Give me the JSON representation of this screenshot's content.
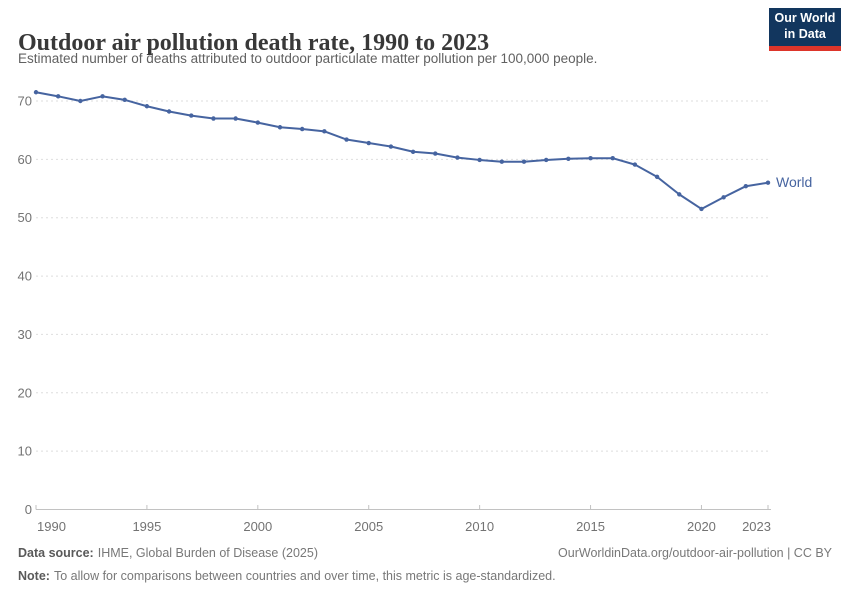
{
  "header": {
    "logo": {
      "line1": "Our World",
      "line2": "in Data"
    }
  },
  "chart_data": {
    "type": "line",
    "title": "Outdoor air pollution death rate, 1990 to 2023",
    "subtitle": "Estimated number of deaths attributed to outdoor particulate matter pollution per 100,000 people.",
    "xlim": [
      1990,
      2023
    ],
    "ylim": [
      0,
      72
    ],
    "grid": "horizontal-dashed",
    "legend_position": "end-of-line-label",
    "x_ticks": [
      1990,
      1995,
      2000,
      2005,
      2010,
      2015,
      2020,
      2023
    ],
    "y_ticks": [
      0,
      10,
      20,
      30,
      40,
      50,
      60,
      70
    ],
    "series": [
      {
        "name": "World",
        "x": [
          1990,
          1991,
          1992,
          1993,
          1994,
          1995,
          1996,
          1997,
          1998,
          1999,
          2000,
          2001,
          2002,
          2003,
          2004,
          2005,
          2006,
          2007,
          2008,
          2009,
          2010,
          2011,
          2012,
          2013,
          2014,
          2015,
          2016,
          2017,
          2018,
          2019,
          2020,
          2021,
          2022,
          2023
        ],
        "values": [
          71.5,
          70.8,
          70.0,
          70.8,
          70.2,
          69.1,
          68.2,
          67.5,
          67.0,
          67.0,
          66.3,
          65.5,
          65.2,
          64.8,
          63.4,
          62.8,
          62.2,
          61.3,
          61.0,
          60.3,
          59.9,
          59.6,
          59.6,
          59.9,
          60.1,
          60.2,
          60.2,
          59.1,
          57.0,
          54.0,
          51.5,
          53.5,
          55.4,
          56.0
        ]
      }
    ]
  },
  "footer": {
    "source_label": "Data source:",
    "source_value": "IHME, Global Burden of Disease (2025)",
    "link": "OurWorldinData.org/outdoor-air-pollution | CC BY",
    "note_label": "Note:",
    "note_value": "To allow for comparisons between countries and over time, this metric is age-standardized."
  },
  "colors": {
    "line": "#4664a0",
    "grid": "#dedede",
    "axis": "#c2c2c2",
    "tick-text": "#737373",
    "title": "#383838",
    "subtitle": "#616161",
    "footer-label": "#5a5a5a",
    "footer-text": "#787878",
    "logo-bg": "#12365e",
    "logo-stripe": "#dd352a"
  }
}
